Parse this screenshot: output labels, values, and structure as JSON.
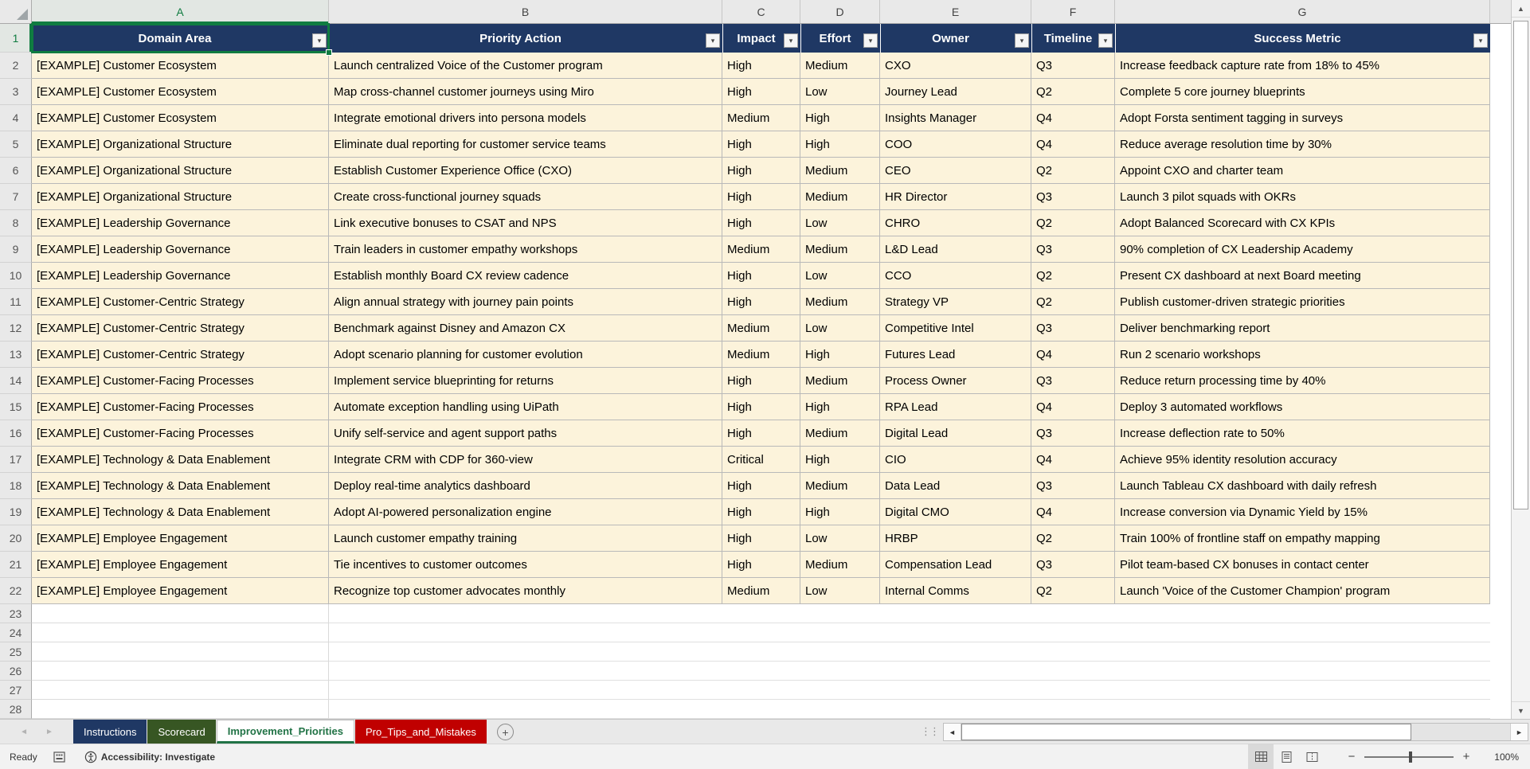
{
  "app_name": "spreadsheet-worksheet",
  "colors": {
    "header_bg": "#1F3864",
    "row_bg": "#FCF3DB",
    "selection_green": "#107C41",
    "active_tab_text": "#217346"
  },
  "icons": {
    "filter_arrow": "▾",
    "scroll_up": "▲",
    "scroll_down": "▼",
    "scroll_left": "◄",
    "scroll_right": "►",
    "tab_nav_left": "◄",
    "tab_nav_right": "►",
    "add_sheet": "+",
    "zoom_out": "−",
    "zoom_in": "+",
    "splitter_dots": "⋮⋮"
  },
  "sheet": {
    "selected_cell": "A1",
    "columns": [
      {
        "letter": "A"
      },
      {
        "letter": "B"
      },
      {
        "letter": "C"
      },
      {
        "letter": "D"
      },
      {
        "letter": "E"
      },
      {
        "letter": "F"
      },
      {
        "letter": "G"
      }
    ],
    "header_row": {
      "number": "1",
      "cells": [
        "Domain Area",
        "Priority Action",
        "Impact",
        "Effort",
        "Owner",
        "Timeline",
        "Success Metric"
      ]
    },
    "data_rows": [
      {
        "number": "2",
        "cells": [
          "[EXAMPLE] Customer Ecosystem",
          "Launch centralized Voice of the Customer program",
          "High",
          "Medium",
          "CXO",
          "Q3",
          "Increase feedback capture rate from 18% to 45%"
        ]
      },
      {
        "number": "3",
        "cells": [
          "[EXAMPLE] Customer Ecosystem",
          "Map cross-channel customer journeys using Miro",
          "High",
          "Low",
          "Journey Lead",
          "Q2",
          "Complete 5 core journey blueprints"
        ]
      },
      {
        "number": "4",
        "cells": [
          "[EXAMPLE] Customer Ecosystem",
          "Integrate emotional drivers into persona models",
          "Medium",
          "High",
          "Insights Manager",
          "Q4",
          "Adopt Forsta sentiment tagging in surveys"
        ]
      },
      {
        "number": "5",
        "cells": [
          "[EXAMPLE] Organizational Structure",
          "Eliminate dual reporting for customer service teams",
          "High",
          "High",
          "COO",
          "Q4",
          "Reduce average resolution time by 30%"
        ]
      },
      {
        "number": "6",
        "cells": [
          "[EXAMPLE] Organizational Structure",
          "Establish Customer Experience Office (CXO)",
          "High",
          "Medium",
          "CEO",
          "Q2",
          "Appoint CXO and charter team"
        ]
      },
      {
        "number": "7",
        "cells": [
          "[EXAMPLE] Organizational Structure",
          "Create cross-functional journey squads",
          "High",
          "Medium",
          "HR Director",
          "Q3",
          "Launch 3 pilot squads with OKRs"
        ]
      },
      {
        "number": "8",
        "cells": [
          "[EXAMPLE] Leadership Governance",
          "Link executive bonuses to CSAT and NPS",
          "High",
          "Low",
          "CHRO",
          "Q2",
          "Adopt Balanced Scorecard with CX KPIs"
        ]
      },
      {
        "number": "9",
        "cells": [
          "[EXAMPLE] Leadership Governance",
          "Train leaders in customer empathy workshops",
          "Medium",
          "Medium",
          "L&D Lead",
          "Q3",
          "90% completion of CX Leadership Academy"
        ]
      },
      {
        "number": "10",
        "cells": [
          "[EXAMPLE] Leadership Governance",
          "Establish monthly Board CX review cadence",
          "High",
          "Low",
          "CCO",
          "Q2",
          "Present CX dashboard at next Board meeting"
        ]
      },
      {
        "number": "11",
        "cells": [
          "[EXAMPLE] Customer-Centric Strategy",
          "Align annual strategy with journey pain points",
          "High",
          "Medium",
          "Strategy VP",
          "Q2",
          "Publish customer-driven strategic priorities"
        ]
      },
      {
        "number": "12",
        "cells": [
          "[EXAMPLE] Customer-Centric Strategy",
          "Benchmark against Disney and Amazon CX",
          "Medium",
          "Low",
          "Competitive Intel",
          "Q3",
          "Deliver benchmarking report"
        ]
      },
      {
        "number": "13",
        "cells": [
          "[EXAMPLE] Customer-Centric Strategy",
          "Adopt scenario planning for customer evolution",
          "Medium",
          "High",
          "Futures Lead",
          "Q4",
          "Run 2 scenario workshops"
        ]
      },
      {
        "number": "14",
        "cells": [
          "[EXAMPLE] Customer-Facing Processes",
          "Implement service blueprinting for returns",
          "High",
          "Medium",
          "Process Owner",
          "Q3",
          "Reduce return processing time by 40%"
        ]
      },
      {
        "number": "15",
        "cells": [
          "[EXAMPLE] Customer-Facing Processes",
          "Automate exception handling using UiPath",
          "High",
          "High",
          "RPA Lead",
          "Q4",
          "Deploy 3 automated workflows"
        ]
      },
      {
        "number": "16",
        "cells": [
          "[EXAMPLE] Customer-Facing Processes",
          "Unify self-service and agent support paths",
          "High",
          "Medium",
          "Digital Lead",
          "Q3",
          "Increase deflection rate to 50%"
        ]
      },
      {
        "number": "17",
        "cells": [
          "[EXAMPLE] Technology & Data Enablement",
          "Integrate CRM with CDP for 360-view",
          "Critical",
          "High",
          "CIO",
          "Q4",
          "Achieve 95% identity resolution accuracy"
        ]
      },
      {
        "number": "18",
        "cells": [
          "[EXAMPLE] Technology & Data Enablement",
          "Deploy real-time analytics dashboard",
          "High",
          "Medium",
          "Data Lead",
          "Q3",
          "Launch Tableau CX dashboard with daily refresh"
        ]
      },
      {
        "number": "19",
        "cells": [
          "[EXAMPLE] Technology & Data Enablement",
          "Adopt AI-powered personalization engine",
          "High",
          "High",
          "Digital CMO",
          "Q4",
          "Increase conversion via Dynamic Yield by 15%"
        ]
      },
      {
        "number": "20",
        "cells": [
          "[EXAMPLE] Employee Engagement",
          "Launch customer empathy training",
          "High",
          "Low",
          "HRBP",
          "Q2",
          "Train 100% of frontline staff on empathy mapping"
        ]
      },
      {
        "number": "21",
        "cells": [
          "[EXAMPLE] Employee Engagement",
          "Tie incentives to customer outcomes",
          "High",
          "Medium",
          "Compensation Lead",
          "Q3",
          "Pilot team-based CX bonuses in contact center"
        ]
      },
      {
        "number": "22",
        "cells": [
          "[EXAMPLE] Employee Engagement",
          "Recognize top customer advocates monthly",
          "Medium",
          "Low",
          "Internal Comms",
          "Q2",
          "Launch 'Voice of the Customer Champion' program"
        ]
      }
    ],
    "empty_row_numbers": [
      "23",
      "24",
      "25",
      "26",
      "27",
      "28"
    ]
  },
  "tab_bar": {
    "tabs": [
      {
        "label": "Instructions",
        "bg": "#1F3864",
        "fg": "#FFFFFF",
        "active": false
      },
      {
        "label": "Scorecard",
        "bg": "#375623",
        "fg": "#FFFFFF",
        "active": false
      },
      {
        "label": "Improvement_Priorities",
        "bg": "#FFFFFF",
        "fg": "#217346",
        "active": true
      },
      {
        "label": "Pro_Tips_and_Mistakes",
        "bg": "#C00000",
        "fg": "#FFFFFF",
        "active": false
      }
    ]
  },
  "status_bar": {
    "ready_label": "Ready",
    "accessibility_label": "Accessibility: Investigate",
    "zoom_level": "100%"
  }
}
